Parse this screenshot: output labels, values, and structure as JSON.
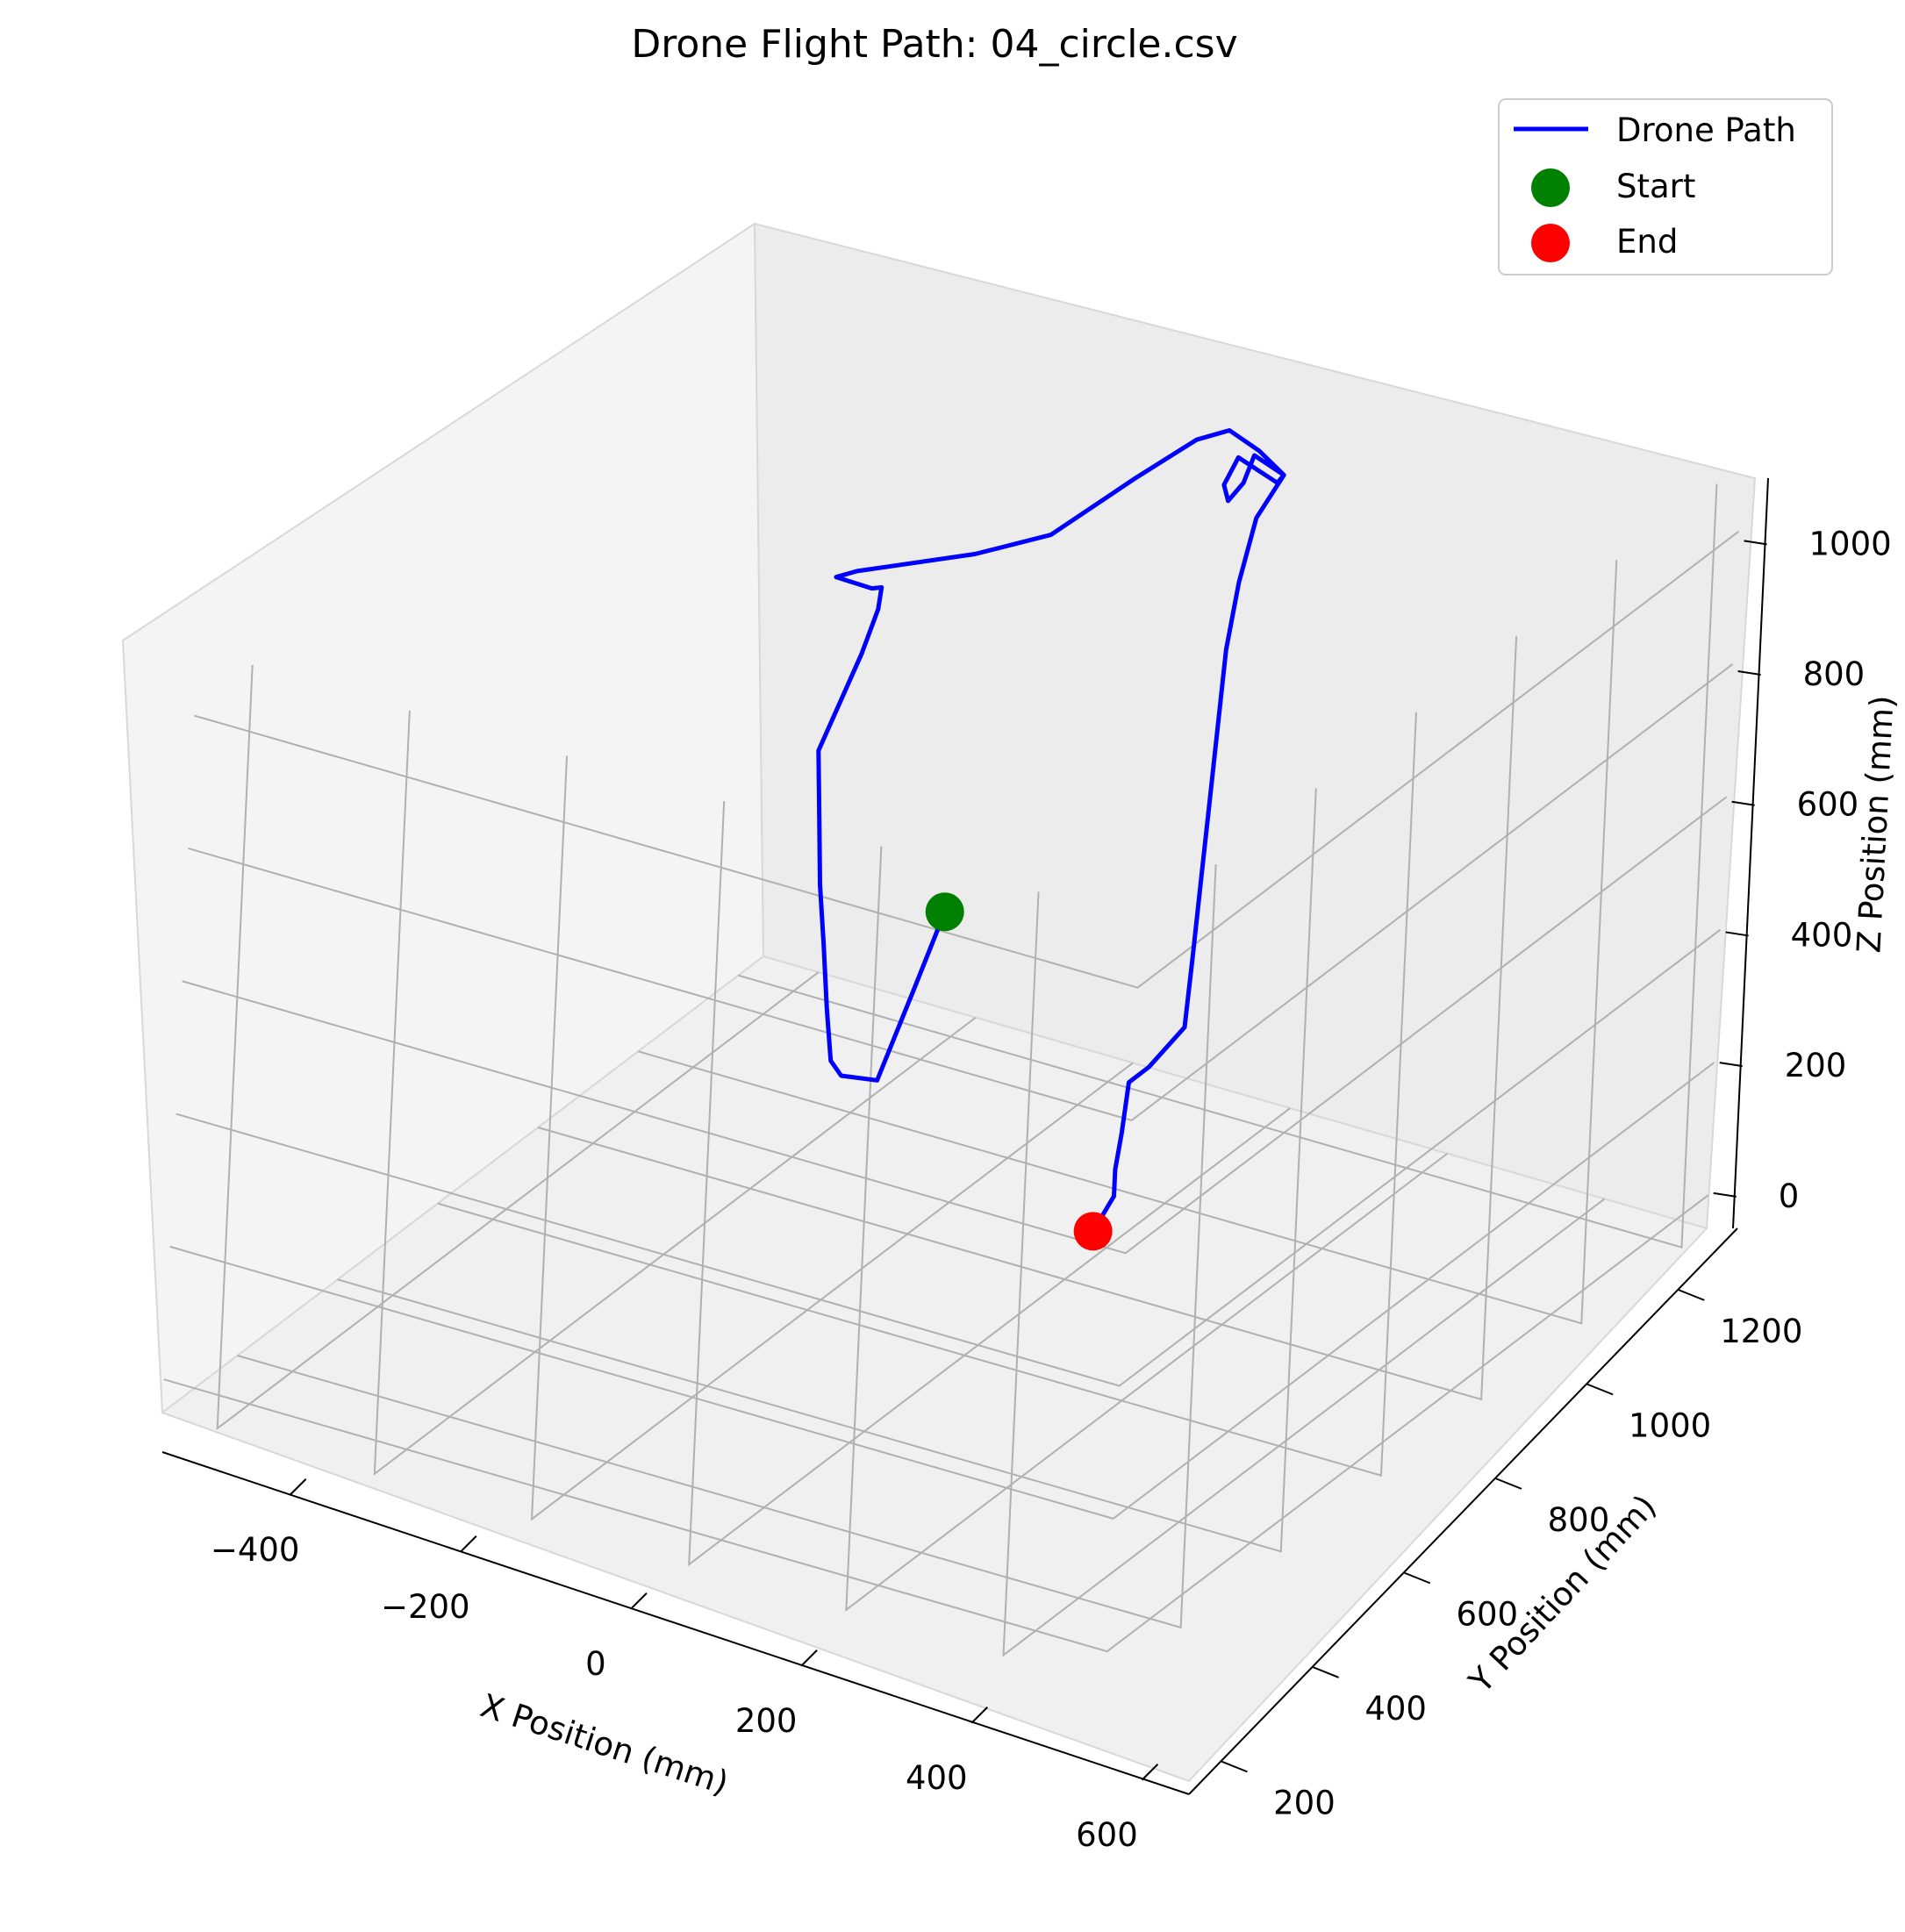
{
  "chart_data": {
    "type": "line",
    "projection": "3d",
    "title": "Drone Flight Path: 04_circle.csv",
    "xlabel": "X Position (mm)",
    "ylabel": "Y Position (mm)",
    "zlabel": "Z Position (mm)",
    "xlim": [
      -550,
      650
    ],
    "ylim": [
      130,
      1330
    ],
    "zlim": [
      -50,
      1100
    ],
    "x_ticks": [
      "−400",
      "−200",
      "0",
      "200",
      "400",
      "600"
    ],
    "x_tick_values": [
      -400,
      -200,
      0,
      200,
      400,
      600
    ],
    "y_ticks": [
      "200",
      "400",
      "600",
      "800",
      "1000",
      "1200"
    ],
    "y_tick_values": [
      200,
      400,
      600,
      800,
      1000,
      1200
    ],
    "z_ticks": [
      "0",
      "200",
      "400",
      "600",
      "800",
      "1000"
    ],
    "z_tick_values": [
      0,
      200,
      400,
      600,
      800,
      1000
    ],
    "grid": true,
    "legend_position": "top-right",
    "legend": [
      {
        "label": "Drone Path",
        "marker": "line",
        "color": "#0000ff"
      },
      {
        "label": "Start",
        "marker": "circle",
        "color": "#008000"
      },
      {
        "label": "End",
        "marker": "circle",
        "color": "#ff0000"
      }
    ],
    "series": [
      {
        "name": "Drone Path",
        "color": "#0000ff",
        "points": [
          [
            -50,
            780,
            640
          ],
          [
            -55,
            750,
            520
          ],
          [
            -75,
            720,
            380
          ],
          [
            -150,
            720,
            430
          ],
          [
            -140,
            700,
            440
          ],
          [
            -120,
            680,
            500
          ],
          [
            -100,
            660,
            580
          ],
          [
            -80,
            640,
            650
          ],
          [
            -55,
            620,
            730
          ],
          [
            -30,
            600,
            810
          ],
          [
            50,
            600,
            910
          ],
          [
            80,
            600,
            960
          ],
          [
            85,
            600,
            990
          ],
          [
            65,
            600,
            1000
          ],
          [
            -10,
            600,
            1060
          ],
          [
            0,
            620,
            1070
          ],
          [
            110,
            700,
            1060
          ],
          [
            150,
            770,
            1090
          ],
          [
            250,
            810,
            1130
          ],
          [
            360,
            820,
            1130
          ],
          [
            460,
            800,
            1080
          ],
          [
            540,
            790,
            1000
          ],
          [
            610,
            780,
            920
          ],
          [
            630,
            760,
            890
          ],
          [
            580,
            740,
            950
          ],
          [
            520,
            760,
            950
          ],
          [
            530,
            760,
            920
          ],
          [
            560,
            760,
            930
          ],
          [
            580,
            760,
            960
          ],
          [
            610,
            780,
            920
          ],
          [
            590,
            760,
            860
          ],
          [
            560,
            760,
            780
          ],
          [
            540,
            760,
            690
          ],
          [
            530,
            760,
            580
          ],
          [
            520,
            760,
            470
          ],
          [
            510,
            760,
            360
          ],
          [
            500,
            760,
            250
          ],
          [
            490,
            760,
            150
          ],
          [
            420,
            760,
            130
          ],
          [
            380,
            760,
            130
          ],
          [
            370,
            760,
            60
          ],
          [
            360,
            760,
            10
          ],
          [
            360,
            760,
            -30
          ],
          [
            320,
            760,
            -60
          ]
        ]
      }
    ],
    "start": {
      "label": "Start",
      "point": [
        -50,
        780,
        640
      ],
      "color": "#008000"
    },
    "end": {
      "label": "End",
      "point": [
        320,
        760,
        -60
      ],
      "color": "#ff0000"
    }
  }
}
